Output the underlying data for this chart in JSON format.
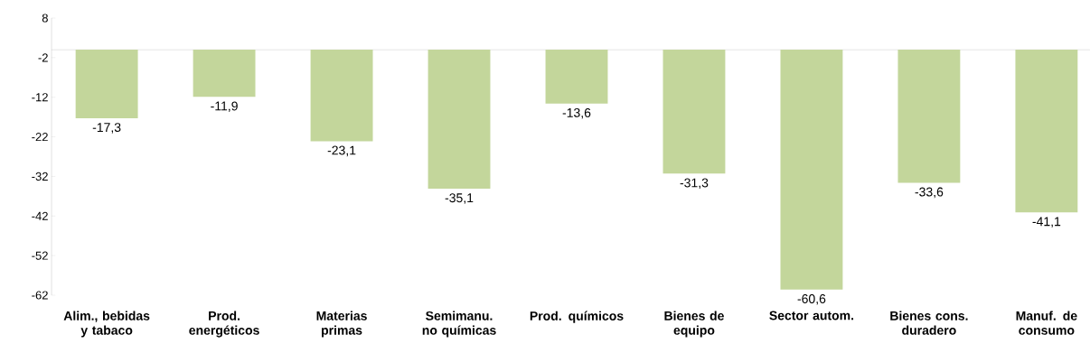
{
  "chart_data": {
    "type": "bar",
    "categories": [
      "Alim., bebidas y tabaco",
      "Prod. energéticos",
      "Materias primas",
      "Semimanu. no químicas",
      "Prod. químicos",
      "Bienes de equipo",
      "Sector autom.",
      "Bienes cons. duradero",
      "Manuf. de consumo"
    ],
    "values": [
      -17.3,
      -11.9,
      -23.1,
      -35.1,
      -13.6,
      -31.3,
      -60.6,
      -33.6,
      -41.1
    ],
    "value_labels": [
      "-17,3",
      "-11,9",
      "-23,1",
      "-35,1",
      "-13,6",
      "-31,3",
      "-60,6",
      "-33,6",
      "-41,1"
    ],
    "color": "#c3d69b",
    "ylim": [
      -62,
      8
    ],
    "yticks": [
      8,
      -2,
      -12,
      -22,
      -32,
      -42,
      -52,
      -62
    ]
  }
}
